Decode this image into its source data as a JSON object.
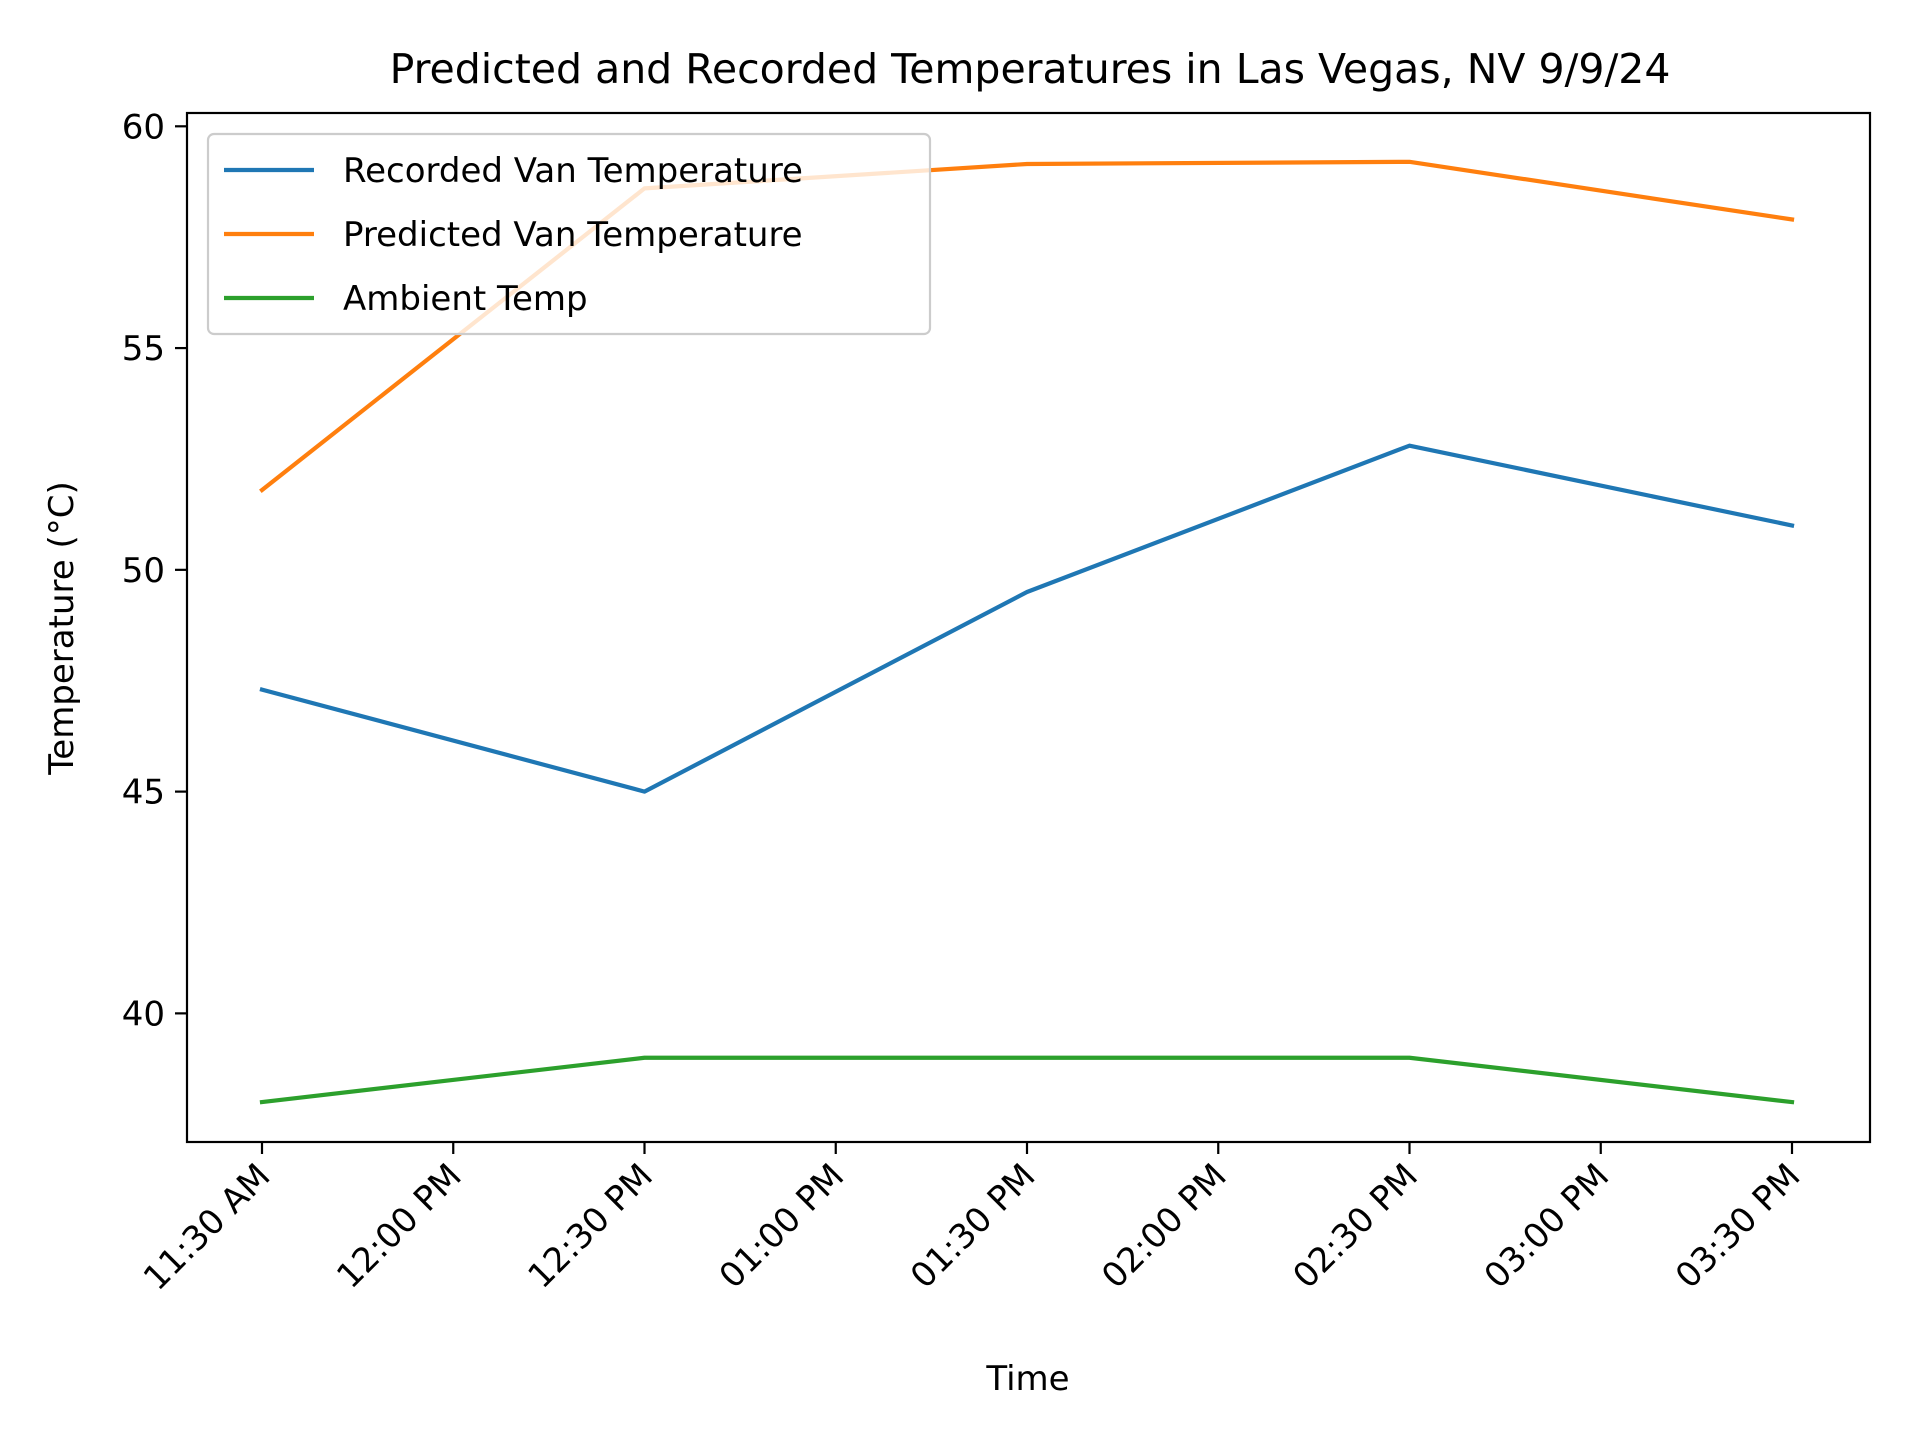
{
  "chart_data": {
    "type": "line",
    "title": "Predicted and Recorded Temperatures in Las Vegas, NV 9/9/24",
    "xlabel": "Time",
    "ylabel": "Temperature (°C)",
    "x_ticks": [
      "11:30 AM",
      "12:00 PM",
      "12:30 PM",
      "01:00 PM",
      "01:30 PM",
      "02:00 PM",
      "02:30 PM",
      "03:00 PM",
      "03:30 PM"
    ],
    "x": [
      "11:30 AM",
      "12:30 PM",
      "01:30 PM",
      "02:30 PM",
      "03:30 PM"
    ],
    "y_ticks": [
      40,
      45,
      50,
      55,
      60
    ],
    "ylim": [
      37.1,
      60.3
    ],
    "grid": false,
    "legend_position": "upper-left",
    "series": [
      {
        "name": "Recorded Van Temperature",
        "color": "#1f77b4",
        "values": [
          47.3,
          45.0,
          49.5,
          52.8,
          51.0
        ]
      },
      {
        "name": "Predicted Van Temperature",
        "color": "#ff7f0e",
        "values": [
          51.8,
          58.6,
          59.15,
          59.2,
          57.9
        ]
      },
      {
        "name": "Ambient Temp",
        "color": "#2ca02c",
        "values": [
          38.0,
          39.0,
          39.0,
          39.0,
          38.0
        ]
      }
    ]
  }
}
